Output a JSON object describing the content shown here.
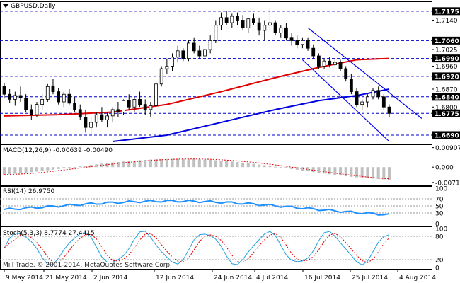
{
  "window": {
    "title": "GBPUSD,Daily",
    "watermark": "Mill Trade, © 2001-2014, MetaQuotes Software Corp."
  },
  "price_panel": {
    "axis_ticks": [
      "1.7175",
      "1.7140",
      "1.7060",
      "1.7025",
      "1.6990",
      "1.6960",
      "1.6920",
      "1.6870",
      "1.6840",
      "1.6800",
      "1.6775",
      "1.6690"
    ],
    "levels": [
      {
        "label": "1.7175",
        "value": 1.7175
      },
      {
        "label": "1.7060",
        "value": 1.706
      },
      {
        "label": "1.6990",
        "value": 1.699
      },
      {
        "label": "1.6920",
        "value": 1.692
      },
      {
        "label": "1.6840",
        "value": 1.684
      },
      {
        "label": "1.6775",
        "value": 1.6775
      },
      {
        "label": "1.6690",
        "value": 1.669
      }
    ],
    "price_range": [
      1.6665,
      1.7205
    ]
  },
  "macd_panel": {
    "label": "MACD(12,26,9) -0.00639 -0.00490",
    "ticks": [
      "0.00907",
      "0.000",
      "-0.00713"
    ],
    "range": [
      -0.0075,
      0.0096
    ]
  },
  "rsi_panel": {
    "label": "RSI(14) 26.9750",
    "ticks": [
      "100",
      "70",
      "50",
      "30",
      "0"
    ]
  },
  "stoch_panel": {
    "label": "Stoch(5,3,3) 8.7774 27.4415",
    "ticks": [
      "100",
      "80",
      "20",
      "0"
    ]
  },
  "x_axis": [
    "9 May 2014",
    "21 May 2014",
    "2 Jun 2014",
    "12 Jun 2014",
    "24 Jun 2014",
    "4 Jul 2014",
    "16 Jul 2014",
    "25 Jul 2014",
    "4 Aug 2014"
  ],
  "colors": {
    "ma_fast": "#e00000",
    "ma_slow": "#0000dd",
    "channel": "#0000ee",
    "rsi": "#1e90ff",
    "stoch_main": "#20a0e0",
    "stoch_signal": "#dd0000",
    "macd_hist": "#c0c0c0",
    "macd_signal": "#dd0000"
  },
  "chart_data": {
    "type": "candlestick",
    "symbol": "GBPUSD",
    "timeframe": "Daily",
    "ohlc": [
      [
        1.688,
        1.6895,
        1.6835,
        1.685
      ],
      [
        1.685,
        1.687,
        1.6815,
        1.683
      ],
      [
        1.683,
        1.686,
        1.6805,
        1.6845
      ],
      [
        1.6845,
        1.688,
        1.682,
        1.6835
      ],
      [
        1.6835,
        1.685,
        1.678,
        1.679
      ],
      [
        1.679,
        1.681,
        1.675,
        1.677
      ],
      [
        1.677,
        1.682,
        1.676,
        1.681
      ],
      [
        1.681,
        1.685,
        1.679,
        1.683
      ],
      [
        1.683,
        1.689,
        1.682,
        1.688
      ],
      [
        1.688,
        1.691,
        1.685,
        1.686
      ],
      [
        1.686,
        1.6875,
        1.681,
        1.682
      ],
      [
        1.682,
        1.686,
        1.68,
        1.685
      ],
      [
        1.685,
        1.687,
        1.681,
        1.6815
      ],
      [
        1.6815,
        1.684,
        1.678,
        1.679
      ],
      [
        1.679,
        1.681,
        1.675,
        1.676
      ],
      [
        1.676,
        1.679,
        1.67,
        1.672
      ],
      [
        1.672,
        1.676,
        1.669,
        1.674
      ],
      [
        1.674,
        1.678,
        1.672,
        1.677
      ],
      [
        1.677,
        1.68,
        1.674,
        1.675
      ],
      [
        1.675,
        1.678,
        1.672,
        1.6765
      ],
      [
        1.6765,
        1.68,
        1.674,
        1.679
      ],
      [
        1.679,
        1.682,
        1.676,
        1.678
      ],
      [
        1.678,
        1.683,
        1.677,
        1.6825
      ],
      [
        1.6825,
        1.685,
        1.679,
        1.68
      ],
      [
        1.68,
        1.684,
        1.678,
        1.683
      ],
      [
        1.683,
        1.686,
        1.68,
        1.681
      ],
      [
        1.681,
        1.683,
        1.677,
        1.679
      ],
      [
        1.679,
        1.682,
        1.676,
        1.6805
      ],
      [
        1.6805,
        1.69,
        1.68,
        1.689
      ],
      [
        1.689,
        1.696,
        1.688,
        1.695
      ],
      [
        1.695,
        1.699,
        1.693,
        1.696
      ],
      [
        1.696,
        1.701,
        1.694,
        1.6995
      ],
      [
        1.6995,
        1.704,
        1.6975,
        1.702
      ],
      [
        1.702,
        1.703,
        1.698,
        1.699
      ],
      [
        1.699,
        1.706,
        1.698,
        1.705
      ],
      [
        1.705,
        1.707,
        1.701,
        1.702
      ],
      [
        1.702,
        1.704,
        1.699,
        1.7
      ],
      [
        1.7,
        1.703,
        1.698,
        1.7025
      ],
      [
        1.7025,
        1.708,
        1.701,
        1.706
      ],
      [
        1.706,
        1.714,
        1.705,
        1.712
      ],
      [
        1.712,
        1.717,
        1.71,
        1.715
      ],
      [
        1.715,
        1.7175,
        1.712,
        1.713
      ],
      [
        1.713,
        1.7165,
        1.711,
        1.7155
      ],
      [
        1.7155,
        1.717,
        1.712,
        1.714
      ],
      [
        1.714,
        1.716,
        1.71,
        1.711
      ],
      [
        1.711,
        1.715,
        1.709,
        1.7145
      ],
      [
        1.7145,
        1.7165,
        1.712,
        1.713
      ],
      [
        1.713,
        1.715,
        1.708,
        1.71
      ],
      [
        1.71,
        1.714,
        1.706,
        1.712
      ],
      [
        1.712,
        1.7185,
        1.71,
        1.713
      ],
      [
        1.713,
        1.714,
        1.708,
        1.709
      ],
      [
        1.709,
        1.712,
        1.707,
        1.711
      ],
      [
        1.711,
        1.713,
        1.706,
        1.707
      ],
      [
        1.707,
        1.709,
        1.704,
        1.706
      ],
      [
        1.706,
        1.708,
        1.703,
        1.7045
      ],
      [
        1.7045,
        1.707,
        1.703,
        1.706
      ],
      [
        1.706,
        1.707,
        1.702,
        1.703
      ],
      [
        1.703,
        1.7045,
        1.699,
        1.7
      ],
      [
        1.7,
        1.701,
        1.695,
        1.696
      ],
      [
        1.696,
        1.699,
        1.695,
        1.698
      ],
      [
        1.698,
        1.6995,
        1.6955,
        1.6965
      ],
      [
        1.6965,
        1.699,
        1.696,
        1.6975
      ],
      [
        1.6975,
        1.6985,
        1.694,
        1.695
      ],
      [
        1.695,
        1.696,
        1.69,
        1.691
      ],
      [
        1.691,
        1.693,
        1.685,
        1.686
      ],
      [
        1.686,
        1.6875,
        1.68,
        1.681
      ],
      [
        1.681,
        1.683,
        1.679,
        1.682
      ],
      [
        1.682,
        1.685,
        1.68,
        1.684
      ],
      [
        1.684,
        1.6875,
        1.683,
        1.6865
      ],
      [
        1.6865,
        1.688,
        1.683,
        1.684
      ],
      [
        1.684,
        1.685,
        1.679,
        1.68
      ],
      [
        1.68,
        1.681,
        1.676,
        1.6775
      ]
    ],
    "ma_fast": [
      [
        0,
        1.6765
      ],
      [
        10,
        1.677
      ],
      [
        20,
        1.678
      ],
      [
        30,
        1.681
      ],
      [
        40,
        1.686
      ],
      [
        50,
        1.6915
      ],
      [
        58,
        1.6955
      ],
      [
        65,
        1.6985
      ],
      [
        71,
        1.699
      ]
    ],
    "ma_slow": [
      [
        20,
        1.6665
      ],
      [
        30,
        1.669
      ],
      [
        40,
        1.674
      ],
      [
        50,
        1.679
      ],
      [
        58,
        1.6825
      ],
      [
        65,
        1.6845
      ],
      [
        71,
        1.687
      ]
    ],
    "channel_upper": [
      [
        56,
        1.711
      ],
      [
        77,
        1.6755
      ]
    ],
    "channel_lower": [
      [
        55,
        1.6985
      ],
      [
        71,
        1.6665
      ]
    ]
  }
}
